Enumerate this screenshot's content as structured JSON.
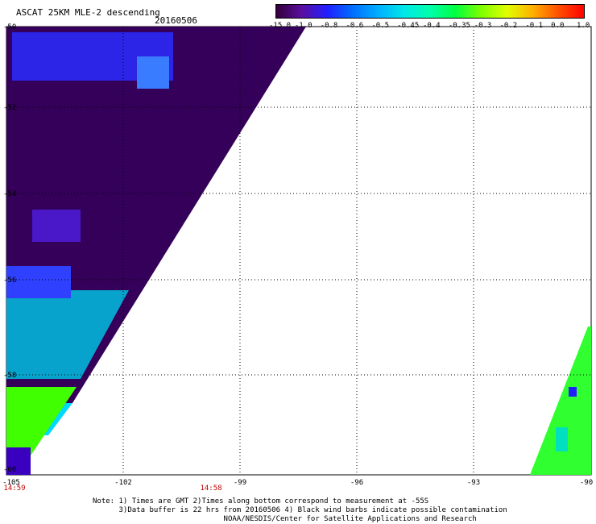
{
  "header": {
    "title": "ASCAT 25KM MLE-2 descending",
    "date": "20160506"
  },
  "colorbar": {
    "labels": [
      "-15.0",
      "-1.0",
      "-0.8",
      "-0.6",
      "-0.5",
      "-0.45",
      "-0.4",
      "-0.35",
      "-0.3",
      "-0.2",
      "-0.1",
      "0.0",
      "1.0"
    ],
    "colors": [
      "#33003a",
      "#5a0fa0",
      "#2020ff",
      "#0070ff",
      "#00b0ff",
      "#00e8e8",
      "#00ffaa",
      "#00ff40",
      "#80ff00",
      "#e0ff00",
      "#ffb000",
      "#ff5000",
      "#ff0000"
    ]
  },
  "axes": {
    "lat_labels": [
      "-50",
      "-52",
      "-54",
      "-56",
      "-58",
      "-60"
    ],
    "lon_labels": [
      "-105",
      "-102",
      "-99",
      "-96",
      "-93",
      "-90"
    ],
    "times": [
      "14:59",
      "14:58"
    ]
  },
  "notes": [
    "Note: 1) Times are GMT 2)Times along bottom correspond to measurement at -55S",
    "      3)Data buffer is 22 hrs from 20160506 4) Black wind barbs indicate possible contamination",
    "                              NOAA/NESDIS/Center for Satellite Applications and Research"
  ]
}
